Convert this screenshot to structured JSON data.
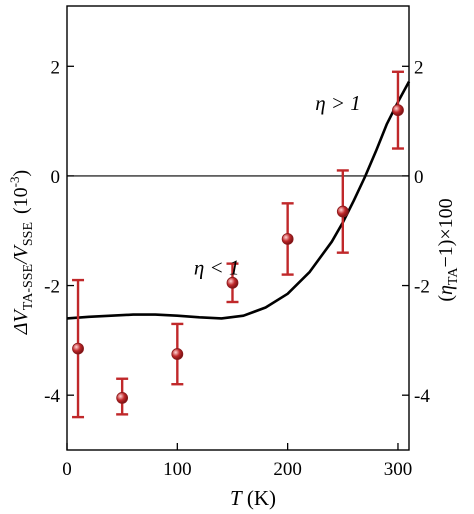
{
  "chart_data": {
    "type": "scatter",
    "x_ticks": [
      0,
      100,
      200,
      300
    ],
    "y_ticks": [
      -4,
      -2,
      0,
      2
    ],
    "y2_ticks": [
      -4,
      -2,
      0,
      2
    ],
    "xlim": [
      0,
      310
    ],
    "ylim": [
      -5,
      3.1
    ],
    "x_tick_labels": [
      "0",
      "100",
      "200",
      "300"
    ],
    "y_tick_labels": [
      "-4",
      "-2",
      "0",
      "2"
    ],
    "y2_tick_labels": [
      "-4",
      "-2",
      "0",
      "2"
    ],
    "xlabel": {
      "var": "T",
      "unit": " (K)"
    },
    "ylabel": {
      "delta": "Δ",
      "v1": "V",
      "sub1": "TA-SSE",
      "slash": "/",
      "v2": "V",
      "sub2": "SSE",
      "scale_base": "(10",
      "scale_exp": "-3",
      "scale_close": ")"
    },
    "y2label": {
      "open": "(",
      "eta": "η",
      "sub": "TA",
      "rest": "−1)×100"
    },
    "annotations": [
      {
        "text": "η > 1",
        "x": 225,
        "y": 1.2
      },
      {
        "text": "η < 1",
        "x": 115,
        "y": -1.8
      }
    ],
    "zero_line": 0,
    "colors": {
      "points": "#c0282a",
      "curve": "#000000"
    },
    "points": [
      {
        "x": 10,
        "y": -3.15,
        "err_low": -4.4,
        "err_high": -1.9
      },
      {
        "x": 50,
        "y": -4.05,
        "err_low": -4.35,
        "err_high": -3.7
      },
      {
        "x": 100,
        "y": -3.25,
        "err_low": -3.8,
        "err_high": -2.7
      },
      {
        "x": 150,
        "y": -1.95,
        "err_low": -2.3,
        "err_high": -1.6
      },
      {
        "x": 200,
        "y": -1.15,
        "err_low": -1.8,
        "err_high": -0.5
      },
      {
        "x": 250,
        "y": -0.65,
        "err_low": -1.4,
        "err_high": 0.1
      },
      {
        "x": 300,
        "y": 1.2,
        "err_low": 0.5,
        "err_high": 1.9
      }
    ],
    "curve": {
      "x": [
        0,
        20,
        40,
        60,
        80,
        100,
        120,
        140,
        160,
        180,
        200,
        220,
        240,
        250,
        260,
        270,
        280,
        290,
        300,
        310
      ],
      "y": [
        -2.6,
        -2.57,
        -2.55,
        -2.53,
        -2.53,
        -2.55,
        -2.58,
        -2.6,
        -2.55,
        -2.4,
        -2.15,
        -1.75,
        -1.2,
        -0.85,
        -0.45,
        -0.02,
        0.45,
        0.95,
        1.35,
        1.72
      ]
    }
  }
}
